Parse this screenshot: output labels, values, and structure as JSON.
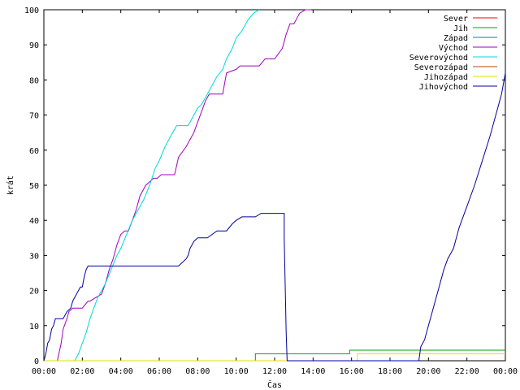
{
  "chart_data": {
    "type": "line",
    "xlabel": "Čas",
    "ylabel": "krát",
    "xlim": [
      0,
      24
    ],
    "ylim": [
      0,
      100
    ],
    "x_ticks": [
      {
        "value": 0,
        "label": "00:00"
      },
      {
        "value": 2,
        "label": "02:00"
      },
      {
        "value": 4,
        "label": "04:00"
      },
      {
        "value": 6,
        "label": "06:00"
      },
      {
        "value": 8,
        "label": "08:00"
      },
      {
        "value": 10,
        "label": "10:00"
      },
      {
        "value": 12,
        "label": "12:00"
      },
      {
        "value": 14,
        "label": "14:00"
      },
      {
        "value": 16,
        "label": "16:00"
      },
      {
        "value": 18,
        "label": "18:00"
      },
      {
        "value": 20,
        "label": "20:00"
      },
      {
        "value": 22,
        "label": "22:00"
      },
      {
        "value": 24,
        "label": "00:00"
      }
    ],
    "y_ticks": [
      {
        "value": 0,
        "label": "0"
      },
      {
        "value": 10,
        "label": "10"
      },
      {
        "value": 20,
        "label": "20"
      },
      {
        "value": 30,
        "label": "30"
      },
      {
        "value": 40,
        "label": "40"
      },
      {
        "value": 50,
        "label": "50"
      },
      {
        "value": 60,
        "label": "60"
      },
      {
        "value": 70,
        "label": "70"
      },
      {
        "value": 80,
        "label": "80"
      },
      {
        "value": 90,
        "label": "90"
      },
      {
        "value": 100,
        "label": "100"
      }
    ],
    "grid": false,
    "legend_position": "top-right",
    "series": [
      {
        "name": "Sever",
        "color": "#ff0000",
        "x": [],
        "y": []
      },
      {
        "name": "Jih",
        "color": "#00a000",
        "x": [
          0,
          11.0,
          11.0,
          15.9,
          15.9,
          24
        ],
        "y": [
          0,
          0,
          2,
          2,
          3,
          3
        ]
      },
      {
        "name": "Západ",
        "color": "#0080a0",
        "x": [],
        "y": []
      },
      {
        "name": "Východ",
        "color": "#a000c0",
        "x": [
          0.7,
          0.9,
          1.0,
          1.2,
          1.3,
          1.5,
          2.0,
          2.3,
          2.4,
          3.0,
          3.2,
          3.4,
          3.6,
          3.8,
          4.0,
          4.2,
          4.4,
          4.6,
          4.8,
          5.0,
          5.3,
          5.5,
          5.7,
          5.9,
          6.1,
          6.3,
          6.5,
          6.8,
          7.0,
          7.4,
          7.6,
          7.8,
          8.0,
          8.2,
          8.4,
          8.6,
          8.8,
          9.0,
          9.3,
          9.5,
          10.0,
          10.2,
          10.4,
          10.7,
          11.2,
          11.5,
          12.0,
          12.4,
          12.6,
          12.8,
          13.0,
          13.3,
          13.6,
          13.9
        ],
        "y": [
          0,
          5,
          9,
          12,
          14,
          15,
          15,
          17,
          17,
          19,
          22,
          26,
          29,
          33,
          36,
          37,
          37,
          40,
          43,
          47,
          50,
          51,
          52,
          52,
          53,
          53,
          53,
          53,
          58,
          61,
          63,
          65,
          68,
          71,
          74,
          76,
          76,
          76,
          76,
          82,
          83,
          84,
          84,
          84,
          84,
          86,
          86,
          89,
          93,
          96,
          96,
          99,
          100,
          100
        ]
      },
      {
        "name": "Severovýchod",
        "color": "#00d8d8",
        "x": [
          1.6,
          1.8,
          2.0,
          2.2,
          2.4,
          2.6,
          2.8,
          3.0,
          3.2,
          3.5,
          3.8,
          4.0,
          4.3,
          4.6,
          4.9,
          5.2,
          5.5,
          5.8,
          6.0,
          6.3,
          6.6,
          6.9,
          7.2,
          7.5,
          7.8,
          8.0,
          8.2,
          8.5,
          8.8,
          9.0,
          9.3,
          9.5,
          9.8,
          10.0,
          10.3,
          10.6,
          10.9,
          11.2
        ],
        "y": [
          0,
          2,
          5,
          8,
          12,
          15,
          18,
          20,
          22,
          26,
          30,
          32,
          36,
          40,
          43,
          46,
          50,
          55,
          57,
          61,
          64,
          67,
          67,
          67,
          70,
          72,
          73,
          76,
          79,
          81,
          83,
          86,
          89,
          92,
          94,
          97,
          99,
          100
        ]
      },
      {
        "name": "Severozápad",
        "color": "#c04000",
        "x": [],
        "y": []
      },
      {
        "name": "Jihozápad",
        "color": "#e0e000",
        "x": [
          0,
          16.3,
          16.3,
          24
        ],
        "y": [
          0,
          0,
          2,
          2
        ]
      },
      {
        "name": "Jihovýchod",
        "color": "#0000a0",
        "x": [
          0,
          0.1,
          0.2,
          0.3,
          0.4,
          0.5,
          0.6,
          0.7,
          0.8,
          1.0,
          1.2,
          1.4,
          1.5,
          1.7,
          1.9,
          2.0,
          2.1,
          2.2,
          2.3,
          2.4,
          5.0,
          7.0,
          7.4,
          7.5,
          7.6,
          7.8,
          8.0,
          8.5,
          9.0,
          9.3,
          9.5,
          9.8,
          10.0,
          10.3,
          10.6,
          11.0,
          11.3,
          11.6,
          12.0,
          12.5,
          12.5,
          12.6,
          12.65,
          13.0,
          19.0,
          19.5,
          19.6,
          19.8,
          20.0,
          20.2,
          20.5,
          20.8,
          21.0,
          21.3,
          21.6,
          22.0,
          22.4,
          22.8,
          23.2,
          23.5,
          23.8,
          24.0
        ],
        "y": [
          0,
          2,
          5,
          6,
          9,
          10,
          12,
          12,
          12,
          12,
          14,
          15,
          17,
          19,
          21,
          21,
          24,
          26,
          27,
          27,
          27,
          27,
          29,
          30,
          32,
          34,
          35,
          35,
          37,
          37,
          37,
          39,
          40,
          41,
          41,
          41,
          42,
          42,
          42,
          42,
          35,
          8,
          0,
          0,
          0,
          0,
          4,
          6,
          10,
          14,
          20,
          26,
          29,
          32,
          38,
          44,
          50,
          57,
          64,
          70,
          76,
          82
        ]
      }
    ]
  }
}
